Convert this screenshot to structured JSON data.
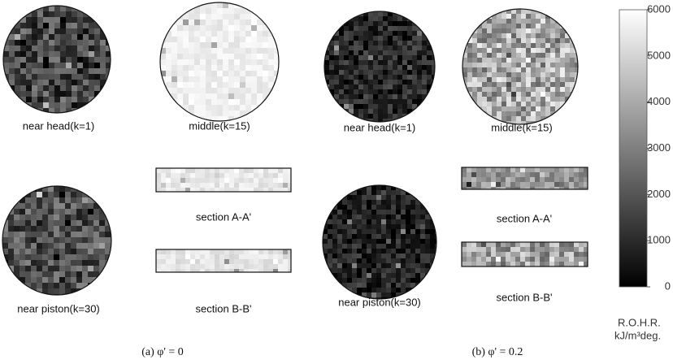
{
  "panels": [
    {
      "caption": "(a) φ' = 0",
      "near_head": "near head(k=1)",
      "middle": "middle(k=15)",
      "near_piston": "near piston(k=30)",
      "section_a": "section A-A'",
      "section_b": "section B-B'"
    },
    {
      "caption": "(b) φ' = 0.2",
      "near_head": "near head(k=1)",
      "middle": "middle(k=15)",
      "near_piston": "near piston(k=30)",
      "section_a": "section A-A'",
      "section_b": "section B-B'"
    }
  ],
  "colorbar": {
    "label": "R.O.H.R.",
    "unit": "kJ/m³deg.",
    "lim": [
      0,
      6000
    ],
    "ticks": [
      0,
      1000,
      2000,
      3000,
      4000,
      5000,
      6000
    ]
  }
}
